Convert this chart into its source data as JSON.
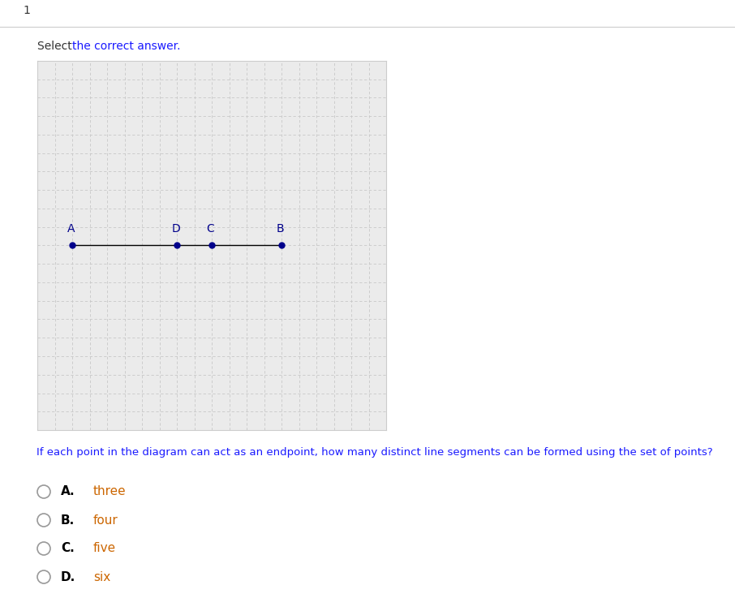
{
  "title_number": "1",
  "select_text": "Select the correct answer.",
  "question_text": "If each point in the diagram can act as an endpoint, how many distinct line segments can be formed using the set of points?",
  "grid_color": "#c8c8c8",
  "line_color": "#000000",
  "point_color": "#00008B",
  "label_color": "#00008B",
  "points": {
    "A": [
      1,
      5
    ],
    "D": [
      4,
      5
    ],
    "C": [
      5,
      5
    ],
    "B": [
      7,
      5
    ]
  },
  "point_order": [
    "A",
    "D",
    "C",
    "B"
  ],
  "grid_xlim": [
    0,
    10
  ],
  "grid_ylim": [
    0,
    10
  ],
  "choices": [
    {
      "letter": "A.",
      "text": "three"
    },
    {
      "letter": "B.",
      "text": "four"
    },
    {
      "letter": "C.",
      "text": "five"
    },
    {
      "letter": "D.",
      "text": "six"
    }
  ],
  "circle_color": "#999999",
  "letter_color": "#000000",
  "answer_color": "#cc6600",
  "question_color": "#1a1aff",
  "outer_bg": "#ffffff",
  "panel_bg": "#ebebeb",
  "panel_border": "#cccccc",
  "title_color": "#333333",
  "select_color": "#333333",
  "select_bold_color": "#1a1aff"
}
